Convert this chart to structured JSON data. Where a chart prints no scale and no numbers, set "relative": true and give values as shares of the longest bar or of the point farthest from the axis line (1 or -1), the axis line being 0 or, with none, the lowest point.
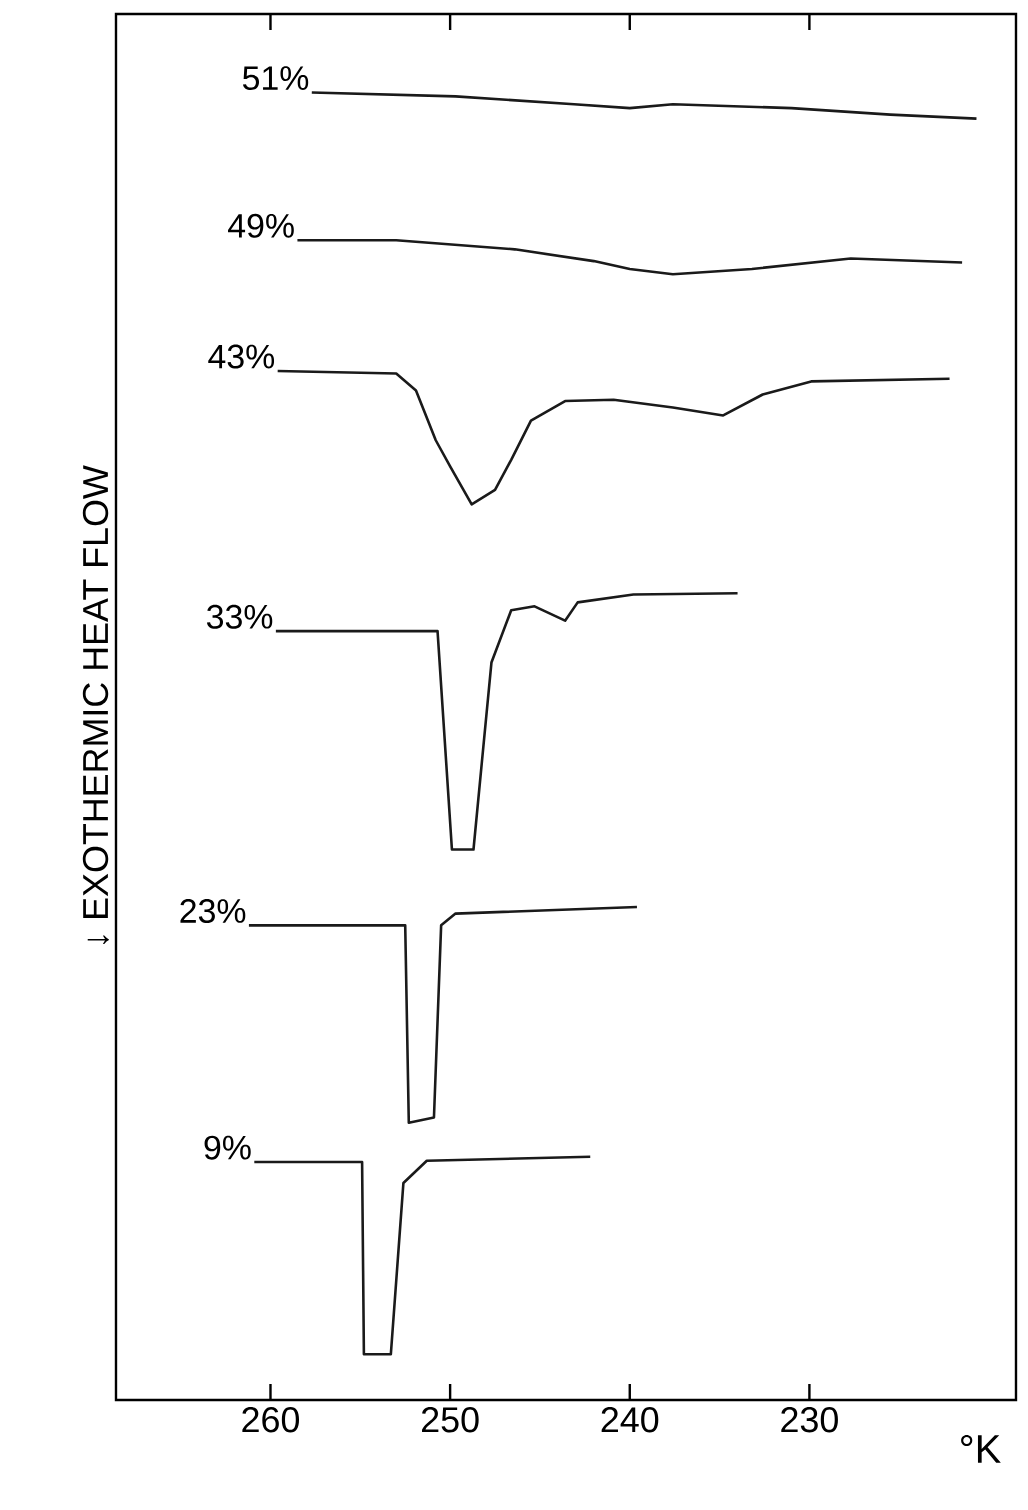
{
  "chart_data": {
    "type": "line",
    "relative": true,
    "xlabel": "°K",
    "ylabel": "↓ EXOTHERMIC HEAT FLOW",
    "xlim": [
      268.6,
      218.5
    ],
    "xticks": [
      260,
      250,
      240,
      230
    ],
    "line_style": "solid",
    "series": [
      {
        "name": "51%",
        "color": "#1a1a1a",
        "x": [
          257.7,
          249.7,
          243.1,
          240.0,
          237.6,
          231.0,
          225.5,
          220.7
        ],
        "values": [
          1.0,
          0.997,
          0.991,
          0.988,
          0.991,
          0.988,
          0.983,
          0.98
        ]
      },
      {
        "name": "49%",
        "color": "#1a1a1a",
        "x": [
          258.5,
          253.0,
          246.4,
          242.0,
          240.0,
          237.6,
          233.2,
          227.7,
          221.5
        ],
        "values": [
          0.887,
          0.887,
          0.88,
          0.871,
          0.865,
          0.861,
          0.865,
          0.873,
          0.87
        ]
      },
      {
        "name": "43%",
        "color": "#1a1a1a",
        "x": [
          259.6,
          253.0,
          251.9,
          250.8,
          250.0,
          248.8,
          247.5,
          246.6,
          245.5,
          243.6,
          240.9,
          237.6,
          234.8,
          232.6,
          229.9,
          222.2
        ],
        "values": [
          0.787,
          0.785,
          0.772,
          0.734,
          0.714,
          0.685,
          0.696,
          0.719,
          0.749,
          0.764,
          0.765,
          0.759,
          0.753,
          0.769,
          0.779,
          0.781
        ]
      },
      {
        "name": "33%",
        "color": "#1a1a1a",
        "x": [
          259.7,
          250.7,
          249.9,
          248.7,
          247.7,
          246.6,
          245.3,
          243.6,
          242.9,
          239.8,
          234.0
        ],
        "values": [
          0.588,
          0.588,
          0.421,
          0.421,
          0.564,
          0.604,
          0.607,
          0.596,
          0.61,
          0.616,
          0.617
        ]
      },
      {
        "name": "23%",
        "color": "#1a1a1a",
        "x": [
          261.2,
          252.5,
          252.3,
          250.9,
          250.5,
          249.7,
          239.6
        ],
        "values": [
          0.363,
          0.363,
          0.212,
          0.216,
          0.363,
          0.372,
          0.377
        ]
      },
      {
        "name": "9%",
        "color": "#1a1a1a",
        "x": [
          260.9,
          254.9,
          254.8,
          253.3,
          252.6,
          251.3,
          242.2
        ],
        "values": [
          0.182,
          0.182,
          0.035,
          0.035,
          0.166,
          0.183,
          0.186
        ]
      }
    ]
  }
}
